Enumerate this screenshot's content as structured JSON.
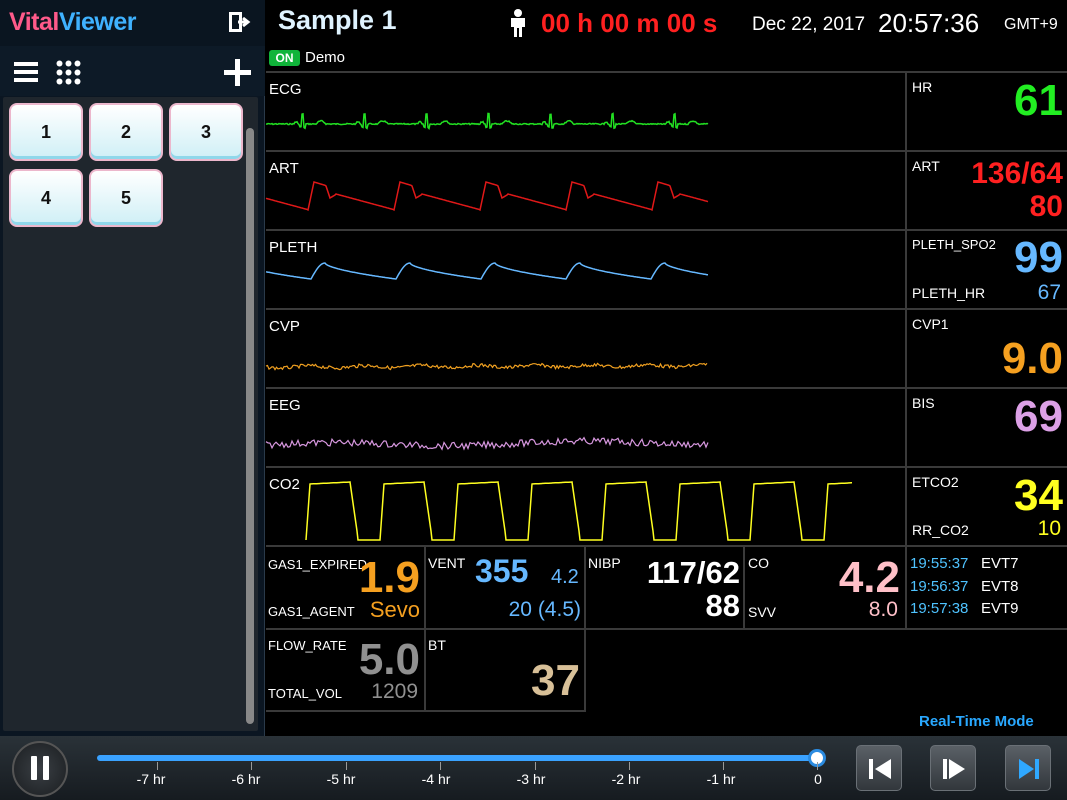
{
  "app": {
    "logo_part1": "Vital",
    "logo_part2": "Viewer",
    "title": "Sample 1",
    "timer": "00 h 00 m 00 s",
    "date": "Dec 22, 2017",
    "clock": "20:57:36",
    "timezone": "GMT+9",
    "status_badge": "ON",
    "mode_label": "Demo",
    "realtime_label": "Real-Time Mode"
  },
  "sidebar": {
    "icons": [
      "exit-icon",
      "list-view-icon",
      "grid-view-icon",
      "add-icon"
    ],
    "tiles": [
      "1",
      "2",
      "3",
      "4",
      "5"
    ]
  },
  "waves": [
    {
      "label": "ECG",
      "color": "#22e022"
    },
    {
      "label": "ART",
      "color": "#e01818"
    },
    {
      "label": "PLETH",
      "color": "#66b8ff"
    },
    {
      "label": "CVP",
      "color": "#f0a020"
    },
    {
      "label": "EEG",
      "color": "#d898e0"
    },
    {
      "label": "CO2",
      "color": "#ffff20"
    }
  ],
  "numerics": {
    "hr": {
      "label": "HR",
      "value": "61",
      "color": "#22ee22"
    },
    "art": {
      "label": "ART",
      "sys_dia": "136/64",
      "mean": "80",
      "color": "#ff2020"
    },
    "pleth": {
      "label": "PLETH_SPO2",
      "value": "99",
      "sub_label": "PLETH_HR",
      "sub_value": "67",
      "color": "#66b8ff"
    },
    "cvp": {
      "label": "CVP1",
      "value": "9.0",
      "color": "#f5a020"
    },
    "bis": {
      "label": "BIS",
      "value": "69",
      "color": "#dca0e6"
    },
    "etco2": {
      "label": "ETCO2",
      "value": "34",
      "sub_label": "RR_CO2",
      "sub_value": "10",
      "color": "#ffff20"
    },
    "gas": {
      "label": "GAS1_EXPIRED",
      "value": "1.9",
      "sub_label": "GAS1_AGENT",
      "sub_value": "Sevo",
      "color": "#f5a020"
    },
    "vent": {
      "label": "VENT",
      "value": "355",
      "value2": "4.2",
      "sub_value": "20 (4.5)",
      "color": "#66b8ff"
    },
    "nibp": {
      "label": "NIBP",
      "sys_dia": "117/62",
      "mean": "88",
      "color": "#ffffff"
    },
    "co": {
      "label": "CO",
      "value": "4.2",
      "sub_label": "SVV",
      "sub_value": "8.0",
      "color": "#ffc0c8"
    },
    "flow": {
      "label": "FLOW_RATE",
      "value": "5.0",
      "sub_label": "TOTAL_VOL",
      "sub_value": "1209",
      "color": "#909090"
    },
    "bt": {
      "label": "BT",
      "value": "37",
      "color": "#d8c098"
    }
  },
  "events": [
    {
      "time": "19:55:37",
      "name": "EVT7"
    },
    {
      "time": "19:56:37",
      "name": "EVT8"
    },
    {
      "time": "19:57:38",
      "name": "EVT9"
    }
  ],
  "timeline": {
    "ticks": [
      "-7 hr",
      "-6 hr",
      "-5 hr",
      "-4 hr",
      "-3 hr",
      "-2 hr",
      "-1 hr",
      "0"
    ],
    "controls": [
      "pause-icon",
      "step-back-icon",
      "step-forward-icon",
      "skip-to-end-icon"
    ]
  }
}
